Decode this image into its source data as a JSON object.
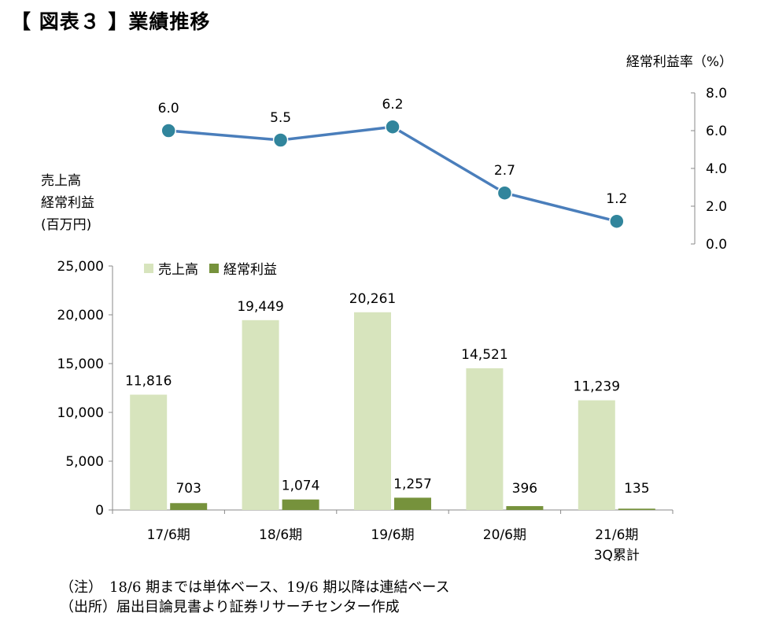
{
  "title": "【 図表３ 】業績推移",
  "right_axis_title": "経常利益率（%）",
  "left_axis_title_lines": [
    "売上高",
    "経常利益",
    "(百万円)"
  ],
  "notes": [
    "（注）　18/6 期までは単体ベース、19/6 期以降は連結ベース",
    "（出所）届出目論見書より証券リサーチセンター作成"
  ],
  "colors": {
    "sales": "#d7e4bd",
    "profit": "#76923c",
    "margin": "#4a7ebb",
    "marker": "#31859c"
  },
  "chart_data": [
    {
      "type": "bar",
      "categories": [
        "17/6期",
        "18/6期",
        "19/6期",
        "20/6期",
        "21/6期\n3Q累計"
      ],
      "series": [
        {
          "name": "売上高",
          "values": [
            11816,
            19449,
            20261,
            14521,
            11239
          ],
          "labels": [
            "11,816",
            "19,449",
            "20,261",
            "14,521",
            "11,239"
          ]
        },
        {
          "name": "経常利益",
          "values": [
            703,
            1074,
            1257,
            396,
            135
          ],
          "labels": [
            "703",
            "1,074",
            "1,257",
            "396",
            "135"
          ]
        }
      ],
      "ylim": [
        0,
        25000
      ],
      "yticks": [
        "0",
        "5,000",
        "10,000",
        "15,000",
        "20,000",
        "25,000"
      ],
      "legend": "top-left"
    },
    {
      "type": "line",
      "categories": [
        "17/6期",
        "18/6期",
        "19/6期",
        "20/6期",
        "21/6期\n3Q累計"
      ],
      "series": [
        {
          "values": [
            6.0,
            5.5,
            6.2,
            2.7,
            1.2
          ],
          "labels": [
            "6.0",
            "5.5",
            "6.2",
            "2.7",
            "1.2"
          ]
        }
      ],
      "ylim": [
        0,
        8
      ],
      "yticks": [
        "0.0",
        "2.0",
        "4.0",
        "6.0",
        "8.0"
      ],
      "yaxis": "right"
    }
  ]
}
